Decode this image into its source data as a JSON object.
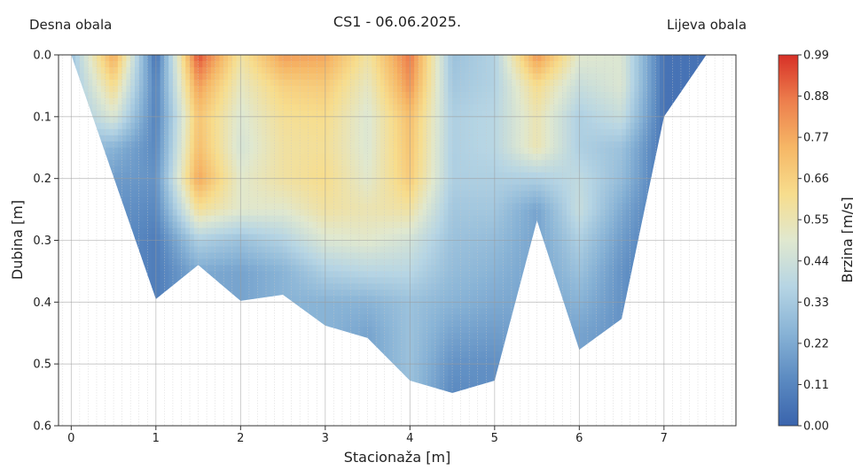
{
  "chart_data": {
    "type": "heatmap",
    "title": "CS1 - 06.06.2025.",
    "left_annotation": "Desna obala",
    "right_annotation": "Lijeva obala",
    "xlabel": "Stacionaža [m]",
    "ylabel": "Dubina [m]",
    "colorbar_label": "Brzina [m/s]",
    "xlim": [
      -0.15,
      7.85
    ],
    "ylim": [
      0.6,
      0.0
    ],
    "x_ticks": [
      0,
      1,
      2,
      3,
      4,
      5,
      6,
      7
    ],
    "y_ticks": [
      0.0,
      0.1,
      0.2,
      0.3,
      0.4,
      0.5,
      0.6
    ],
    "y_tick_labels": [
      "0.0",
      "0.1",
      "0.2",
      "0.3",
      "0.4",
      "0.5",
      "0.6"
    ],
    "colorbar_range": [
      0.0,
      0.99
    ],
    "colorbar_ticks": [
      "0.99",
      "0.88",
      "0.77",
      "0.66",
      "0.55",
      "0.44",
      "0.33",
      "0.22",
      "0.11",
      "0.00"
    ],
    "colormap": [
      "#3a64ad",
      "#5b8ac1",
      "#88b3d6",
      "#b6d5e4",
      "#e0e8cf",
      "#f7dd8d",
      "#f6b766",
      "#ed7f4d",
      "#d73027"
    ],
    "grid": true,
    "bed_profile": {
      "x": [
        0,
        1,
        1.5,
        2,
        2.5,
        3,
        3.5,
        4,
        4.5,
        5,
        5.5,
        6,
        6.5,
        7,
        7.5
      ],
      "depth": [
        0.0,
        0.395,
        0.34,
        0.398,
        0.388,
        0.438,
        0.458,
        0.527,
        0.547,
        0.527,
        0.268,
        0.477,
        0.427,
        0.1,
        0.0
      ]
    },
    "velocity_profiles": {
      "x": [
        0,
        0.5,
        1,
        1.5,
        2,
        2.5,
        3,
        3.5,
        4,
        4.5,
        5,
        5.5,
        6,
        6.5,
        7,
        7.5
      ],
      "depth_levels": [
        0.0,
        0.05,
        0.1,
        0.15,
        0.2,
        0.25,
        0.3,
        0.35,
        0.4,
        0.45,
        0.5,
        0.55
      ],
      "values": [
        [
          0.3,
          0.3,
          0.3,
          0.3,
          0.3,
          0.3,
          0.3,
          0.3,
          0.3,
          0.3,
          0.3,
          0.3
        ],
        [
          0.78,
          0.62,
          0.48,
          0.25,
          0.18,
          0.15,
          0.15,
          0.15,
          0.15,
          0.15,
          0.15,
          0.15
        ],
        [
          0.05,
          0.1,
          0.1,
          0.12,
          0.15,
          0.12,
          0.08,
          0.08,
          0.08,
          0.08,
          0.08,
          0.08
        ],
        [
          0.95,
          0.8,
          0.7,
          0.72,
          0.78,
          0.6,
          0.35,
          0.22,
          0.22,
          0.22,
          0.22,
          0.22
        ],
        [
          0.58,
          0.52,
          0.48,
          0.46,
          0.5,
          0.5,
          0.3,
          0.2,
          0.2,
          0.2,
          0.2,
          0.2
        ],
        [
          0.8,
          0.66,
          0.6,
          0.58,
          0.58,
          0.5,
          0.36,
          0.25,
          0.25,
          0.25,
          0.25,
          0.25
        ],
        [
          0.78,
          0.68,
          0.62,
          0.6,
          0.62,
          0.58,
          0.48,
          0.35,
          0.25,
          0.25,
          0.25,
          0.25
        ],
        [
          0.58,
          0.52,
          0.48,
          0.48,
          0.5,
          0.55,
          0.5,
          0.38,
          0.25,
          0.2,
          0.2,
          0.2
        ],
        [
          0.88,
          0.82,
          0.72,
          0.7,
          0.68,
          0.58,
          0.45,
          0.38,
          0.3,
          0.3,
          0.3,
          0.3
        ],
        [
          0.3,
          0.32,
          0.35,
          0.35,
          0.35,
          0.32,
          0.3,
          0.28,
          0.25,
          0.2,
          0.15,
          0.12
        ],
        [
          0.36,
          0.36,
          0.38,
          0.38,
          0.35,
          0.32,
          0.28,
          0.25,
          0.22,
          0.18,
          0.14,
          0.14
        ],
        [
          0.82,
          0.62,
          0.55,
          0.55,
          0.35,
          0.2,
          0.2,
          0.2,
          0.2,
          0.2,
          0.2,
          0.2
        ],
        [
          0.5,
          0.42,
          0.35,
          0.35,
          0.4,
          0.42,
          0.35,
          0.3,
          0.25,
          0.2,
          0.2,
          0.2
        ],
        [
          0.48,
          0.48,
          0.42,
          0.3,
          0.28,
          0.22,
          0.18,
          0.15,
          0.15,
          0.15,
          0.15,
          0.15
        ],
        [
          0.05,
          0.05,
          0.05,
          0.05,
          0.05,
          0.05,
          0.05,
          0.05,
          0.05,
          0.05,
          0.05,
          0.05
        ],
        [
          0.05,
          0.05,
          0.05,
          0.05,
          0.05,
          0.05,
          0.05,
          0.05,
          0.05,
          0.05,
          0.05,
          0.05
        ]
      ]
    }
  }
}
